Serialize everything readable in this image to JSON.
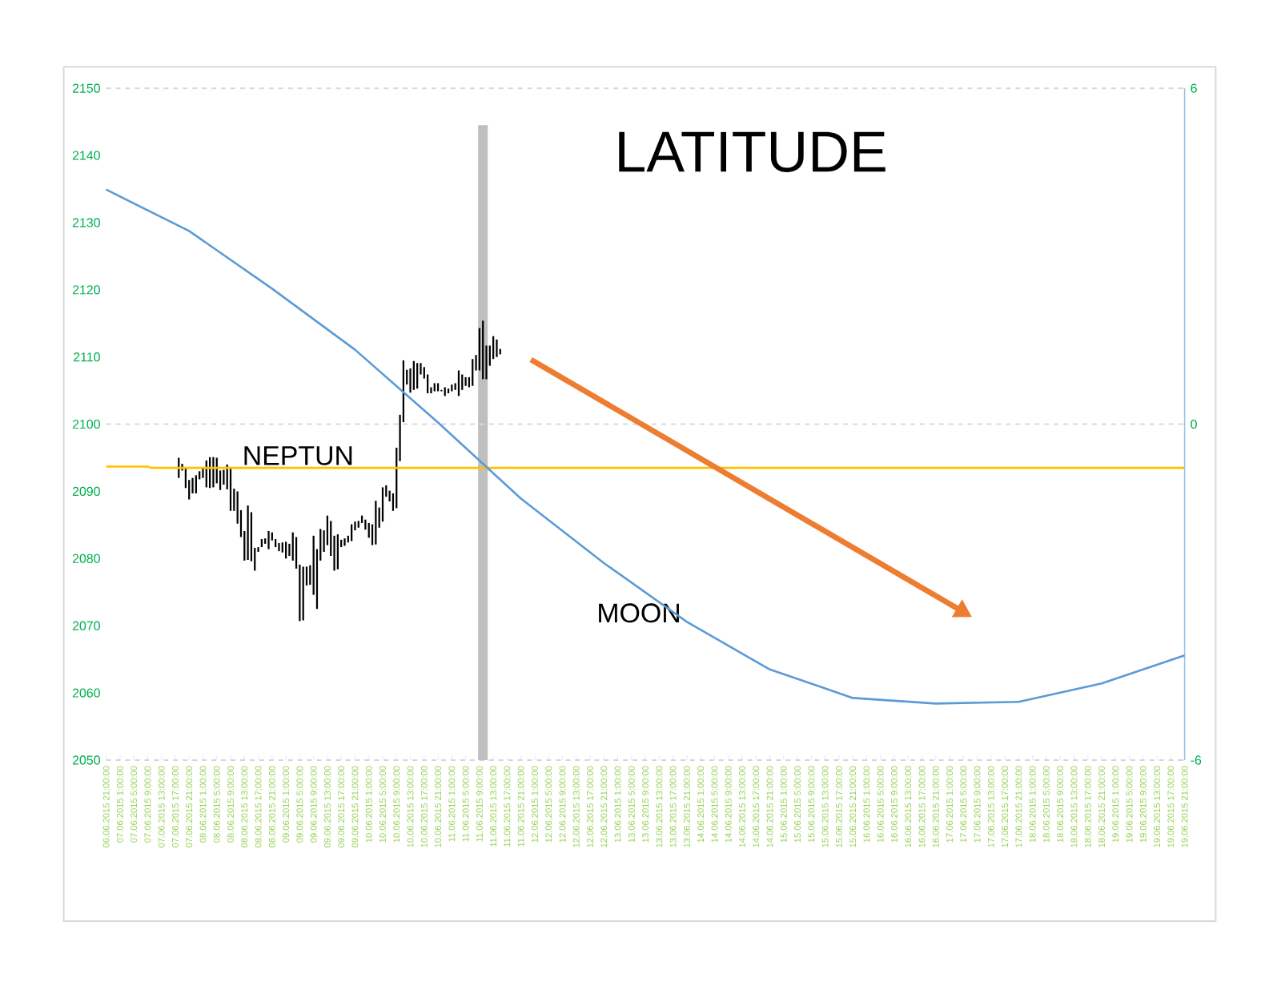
{
  "chart_data": {
    "type": "bar",
    "title": "LATITUDE",
    "xlim": [
      "2015-06-06T21:00",
      "2015-06-19T21:00"
    ],
    "xticks": [
      {
        "value": "2015-06-06T21:00",
        "label": "06.06.2015 21:00:00"
      },
      {
        "value": "2015-06-07T01:00",
        "label": "07.06.2015 1:00:00"
      },
      {
        "value": "2015-06-07T05:00",
        "label": "07.06.2015 5:00:00"
      },
      {
        "value": "2015-06-07T09:00",
        "label": "07.06.2015 9:00:00"
      },
      {
        "value": "2015-06-07T13:00",
        "label": "07.06.2015 13:00:00"
      },
      {
        "value": "2015-06-07T17:00",
        "label": "07.06.2015 17:00:00"
      },
      {
        "value": "2015-06-07T21:00",
        "label": "07.06.2015 21:00:00"
      },
      {
        "value": "2015-06-08T01:00",
        "label": "08.06.2015 1:00:00"
      },
      {
        "value": "2015-06-08T05:00",
        "label": "08.06.2015 5:00:00"
      },
      {
        "value": "2015-06-08T09:00",
        "label": "08.06.2015 9:00:00"
      },
      {
        "value": "2015-06-08T13:00",
        "label": "08.06.2015 13:00:00"
      },
      {
        "value": "2015-06-08T17:00",
        "label": "08.06.2015 17:00:00"
      },
      {
        "value": "2015-06-08T21:00",
        "label": "08.06.2015 21:00:00"
      },
      {
        "value": "2015-06-09T01:00",
        "label": "09.06.2015 1:00:00"
      },
      {
        "value": "2015-06-09T05:00",
        "label": "09.06.2015 5:00:00"
      },
      {
        "value": "2015-06-09T09:00",
        "label": "09.06.2015 9:00:00"
      },
      {
        "value": "2015-06-09T13:00",
        "label": "09.06.2015 13:00:00"
      },
      {
        "value": "2015-06-09T17:00",
        "label": "09.06.2015 17:00:00"
      },
      {
        "value": "2015-06-09T21:00",
        "label": "09.06.2015 21:00:00"
      },
      {
        "value": "2015-06-10T01:00",
        "label": "10.06.2015 1:00:00"
      },
      {
        "value": "2015-06-10T05:00",
        "label": "10.06.2015 5:00:00"
      },
      {
        "value": "2015-06-10T09:00",
        "label": "10.06.2015 9:00:00"
      },
      {
        "value": "2015-06-10T13:00",
        "label": "10.06.2015 13:00:00"
      },
      {
        "value": "2015-06-10T17:00",
        "label": "10.06.2015 17:00:00"
      },
      {
        "value": "2015-06-10T21:00",
        "label": "10.06.2015 21:00:00"
      },
      {
        "value": "2015-06-11T01:00",
        "label": "11.06.2015 1:00:00"
      },
      {
        "value": "2015-06-11T05:00",
        "label": "11.06.2015 5:00:00"
      },
      {
        "value": "2015-06-11T09:00",
        "label": "11.06.2015 9:00:00"
      },
      {
        "value": "2015-06-11T13:00",
        "label": "11.06.2015 13:00:00"
      },
      {
        "value": "2015-06-11T17:00",
        "label": "11.06.2015 17:00:00"
      },
      {
        "value": "2015-06-11T21:00",
        "label": "11.06.2015 21:00:00"
      },
      {
        "value": "2015-06-12T01:00",
        "label": "12.06.2015 1:00:00"
      },
      {
        "value": "2015-06-12T05:00",
        "label": "12.06.2015 5:00:00"
      },
      {
        "value": "2015-06-12T09:00",
        "label": "12.06.2015 9:00:00"
      },
      {
        "value": "2015-06-12T13:00",
        "label": "12.06.2015 13:00:00"
      },
      {
        "value": "2015-06-12T17:00",
        "label": "12.06.2015 17:00:00"
      },
      {
        "value": "2015-06-12T21:00",
        "label": "12.06.2015 21:00:00"
      },
      {
        "value": "2015-06-13T01:00",
        "label": "13.06.2015 1:00:00"
      },
      {
        "value": "2015-06-13T05:00",
        "label": "13.06.2015 5:00:00"
      },
      {
        "value": "2015-06-13T09:00",
        "label": "13.06.2015 9:00:00"
      },
      {
        "value": "2015-06-13T13:00",
        "label": "13.06.2015 13:00:00"
      },
      {
        "value": "2015-06-13T17:00",
        "label": "13.06.2015 17:00:00"
      },
      {
        "value": "2015-06-13T21:00",
        "label": "13.06.2015 21:00:00"
      },
      {
        "value": "2015-06-14T01:00",
        "label": "14.06.2015 1:00:00"
      },
      {
        "value": "2015-06-14T05:00",
        "label": "14.06.2015 5:00:00"
      },
      {
        "value": "2015-06-14T09:00",
        "label": "14.06.2015 9:00:00"
      },
      {
        "value": "2015-06-14T13:00",
        "label": "14.06.2015 13:00:00"
      },
      {
        "value": "2015-06-14T17:00",
        "label": "14.06.2015 17:00:00"
      },
      {
        "value": "2015-06-14T21:00",
        "label": "14.06.2015 21:00:00"
      },
      {
        "value": "2015-06-15T01:00",
        "label": "15.06.2015 1:00:00"
      },
      {
        "value": "2015-06-15T05:00",
        "label": "15.06.2015 5:00:00"
      },
      {
        "value": "2015-06-15T09:00",
        "label": "15.06.2015 9:00:00"
      },
      {
        "value": "2015-06-15T13:00",
        "label": "15.06.2015 13:00:00"
      },
      {
        "value": "2015-06-15T17:00",
        "label": "15.06.2015 17:00:00"
      },
      {
        "value": "2015-06-15T21:00",
        "label": "15.06.2015 21:00:00"
      },
      {
        "value": "2015-06-16T01:00",
        "label": "16.06.2015 1:00:00"
      },
      {
        "value": "2015-06-16T05:00",
        "label": "16.06.2015 5:00:00"
      },
      {
        "value": "2015-06-16T09:00",
        "label": "16.06.2015 9:00:00"
      },
      {
        "value": "2015-06-16T13:00",
        "label": "16.06.2015 13:00:00"
      },
      {
        "value": "2015-06-16T17:00",
        "label": "16.06.2015 17:00:00"
      },
      {
        "value": "2015-06-16T21:00",
        "label": "16.06.2015 21:00:00"
      },
      {
        "value": "2015-06-17T01:00",
        "label": "17.06.2015 1:00:00"
      },
      {
        "value": "2015-06-17T05:00",
        "label": "17.06.2015 5:00:00"
      },
      {
        "value": "2015-06-17T09:00",
        "label": "17.06.2015 9:00:00"
      },
      {
        "value": "2015-06-17T13:00",
        "label": "17.06.2015 13:00:00"
      },
      {
        "value": "2015-06-17T17:00",
        "label": "17.06.2015 17:00:00"
      },
      {
        "value": "2015-06-17T21:00",
        "label": "17.06.2015 21:00:00"
      },
      {
        "value": "2015-06-18T01:00",
        "label": "18.06.2015 1:00:00"
      },
      {
        "value": "2015-06-18T05:00",
        "label": "18.06.2015 5:00:00"
      },
      {
        "value": "2015-06-18T09:00",
        "label": "18.06.2015 9:00:00"
      },
      {
        "value": "2015-06-18T13:00",
        "label": "18.06.2015 13:00:00"
      },
      {
        "value": "2015-06-18T17:00",
        "label": "18.06.2015 17:00:00"
      },
      {
        "value": "2015-06-18T21:00",
        "label": "18.06.2015 21:00:00"
      },
      {
        "value": "2015-06-19T01:00",
        "label": "19.06.2015 1:00:00"
      },
      {
        "value": "2015-06-19T05:00",
        "label": "19.06.2015 5:00:00"
      },
      {
        "value": "2015-06-19T09:00",
        "label": "19.06.2015 9:00:00"
      },
      {
        "value": "2015-06-19T13:00",
        "label": "19.06.2015 13:00:00"
      },
      {
        "value": "2015-06-19T17:00",
        "label": "19.06.2015 17:00:00"
      },
      {
        "value": "2015-06-19T21:00",
        "label": "19.06.2015 21:00:00"
      }
    ],
    "ylim": [
      2050,
      2150
    ],
    "yticks": [
      2050,
      2060,
      2070,
      2080,
      2090,
      2100,
      2110,
      2120,
      2130,
      2140,
      2150
    ],
    "y2lim": [
      -6,
      6
    ],
    "y2ticks": [
      -6,
      0,
      6
    ],
    "series": [
      {
        "color": "#000000",
        "x": [
          "2015-06-07T18:00",
          "2015-06-07T19:00",
          "2015-06-07T20:00",
          "2015-06-07T21:00",
          "2015-06-07T22:00",
          "2015-06-07T23:00",
          "2015-06-08T00:00",
          "2015-06-08T01:00",
          "2015-06-08T02:00",
          "2015-06-08T03:00",
          "2015-06-08T04:00",
          "2015-06-08T05:00",
          "2015-06-08T06:00",
          "2015-06-08T07:00",
          "2015-06-08T08:00",
          "2015-06-08T09:00",
          "2015-06-08T10:00",
          "2015-06-08T11:00",
          "2015-06-08T12:00",
          "2015-06-08T13:00",
          "2015-06-08T14:00",
          "2015-06-08T15:00",
          "2015-06-08T16:00",
          "2015-06-08T17:00",
          "2015-06-08T18:00",
          "2015-06-08T19:00",
          "2015-06-08T20:00",
          "2015-06-08T21:00",
          "2015-06-08T22:00",
          "2015-06-08T23:00",
          "2015-06-09T00:00",
          "2015-06-09T01:00",
          "2015-06-09T02:00",
          "2015-06-09T03:00",
          "2015-06-09T04:00",
          "2015-06-09T05:00",
          "2015-06-09T06:00",
          "2015-06-09T07:00",
          "2015-06-09T08:00",
          "2015-06-09T09:00",
          "2015-06-09T10:00",
          "2015-06-09T11:00",
          "2015-06-09T12:00",
          "2015-06-09T13:00",
          "2015-06-09T14:00",
          "2015-06-09T15:00",
          "2015-06-09T16:00",
          "2015-06-09T17:00",
          "2015-06-09T18:00",
          "2015-06-09T19:00",
          "2015-06-09T20:00",
          "2015-06-09T21:00",
          "2015-06-09T22:00",
          "2015-06-09T23:00",
          "2015-06-10T00:00",
          "2015-06-10T01:00",
          "2015-06-10T02:00",
          "2015-06-10T03:00",
          "2015-06-10T04:00",
          "2015-06-10T05:00",
          "2015-06-10T06:00",
          "2015-06-10T07:00",
          "2015-06-10T08:00",
          "2015-06-10T09:00",
          "2015-06-10T10:00",
          "2015-06-10T11:00",
          "2015-06-10T12:00",
          "2015-06-10T13:00",
          "2015-06-10T14:00",
          "2015-06-10T15:00",
          "2015-06-10T16:00",
          "2015-06-10T17:00",
          "2015-06-10T18:00",
          "2015-06-10T19:00",
          "2015-06-10T20:00",
          "2015-06-10T21:00",
          "2015-06-10T22:00",
          "2015-06-10T23:00",
          "2015-06-11T00:00",
          "2015-06-11T01:00",
          "2015-06-11T02:00",
          "2015-06-11T03:00",
          "2015-06-11T04:00",
          "2015-06-11T05:00",
          "2015-06-11T06:00",
          "2015-06-11T07:00",
          "2015-06-11T08:00",
          "2015-06-11T09:00",
          "2015-06-11T10:00",
          "2015-06-11T11:00",
          "2015-06-11T12:00",
          "2015-06-11T13:00",
          "2015-06-11T14:00",
          "2015-06-11T15:00"
        ],
        "base": [
          2092.0,
          2093.1,
          2090.5,
          2088.8,
          2089.7,
          2089.7,
          2091.8,
          2092.0,
          2090.6,
          2090.5,
          2090.6,
          2091.2,
          2090.2,
          2091.0,
          2090.3,
          2087.1,
          2087.1,
          2085.2,
          2083.2,
          2079.7,
          2079.8,
          2079.6,
          2078.2,
          2081.0,
          2081.7,
          2082.2,
          2081.4,
          2082.7,
          2081.7,
          2081.1,
          2080.9,
          2080.0,
          2080.4,
          2079.7,
          2078.5,
          2070.7,
          2070.8,
          2076.0,
          2076.1,
          2074.6,
          2072.5,
          2079.7,
          2081.0,
          2082.0,
          2080.4,
          2078.2,
          2078.4,
          2081.7,
          2081.9,
          2082.4,
          2082.6,
          2084.2,
          2084.6,
          2085.3,
          2084.3,
          2083.1,
          2082.0,
          2082.1,
          2084.6,
          2085.5,
          2089.2,
          2088.5,
          2087.1,
          2087.5,
          2094.5,
          2100.3,
          2105.9,
          2104.7,
          2105.1,
          2105.3,
          2107.4,
          2106.8,
          2104.6,
          2104.6,
          2104.9,
          2104.9,
          2104.9,
          2104.2,
          2104.6,
          2104.9,
          2105.1,
          2104.2,
          2105.1,
          2105.7,
          2105.5,
          2105.7,
          2108.0,
          2108.0,
          2106.7,
          2106.7,
          2108.7,
          2109.7,
          2110.0,
          2110.4
        ],
        "values": [
          3.0,
          1.0,
          3.0,
          2.9,
          2.3,
          2.7,
          1.2,
          1.4,
          4.0,
          4.6,
          4.5,
          3.8,
          2.9,
          2.2,
          3.7,
          6.3,
          3.3,
          4.8,
          4.0,
          4.4,
          8.1,
          7.3,
          3.4,
          0.7,
          1.2,
          0.8,
          2.7,
          1.2,
          1.2,
          1.2,
          1.5,
          2.5,
          1.8,
          4.2,
          4.7,
          8.4,
          8.0,
          2.8,
          2.9,
          8.8,
          8.9,
          4.7,
          3.2,
          4.4,
          5.2,
          5.2,
          5.2,
          1.1,
          1.1,
          1.0,
          2.5,
          1.3,
          1.0,
          1.1,
          1.5,
          2.2,
          3.1,
          6.5,
          3.0,
          5.1,
          1.7,
          1.6,
          2.6,
          9.0,
          6.9,
          9.2,
          2.2,
          3.6,
          4.3,
          3.8,
          1.7,
          1.7,
          2.8,
          0.9,
          1.2,
          1.2,
          0.2,
          1.3,
          0.7,
          1.0,
          1.0,
          3.8,
          2.3,
          1.3,
          1.5,
          4.0,
          2.3,
          6.3,
          8.7,
          5.0,
          3.0,
          3.4,
          2.6,
          0.8
        ]
      },
      {
        "type": "line",
        "color": "#ffc000",
        "x": [
          "2015-06-06T21:00",
          "2015-06-07T09:00",
          "2015-06-07T10:00",
          "2015-06-19T21:00"
        ],
        "values": [
          2093.7,
          2093.7,
          2093.5,
          2093.5
        ]
      },
      {
        "type": "line",
        "axis": "y2",
        "color": "#5b9bd5",
        "x": [
          "2015-06-06T21:00",
          "2015-06-07T21:00",
          "2015-06-08T21:00",
          "2015-06-09T21:00",
          "2015-06-10T21:00",
          "2015-06-11T21:00",
          "2015-06-12T21:00",
          "2015-06-13T21:00",
          "2015-06-14T21:00",
          "2015-06-15T21:00",
          "2015-06-16T21:00",
          "2015-06-17T21:00",
          "2015-06-18T21:00",
          "2015-06-19T21:00"
        ],
        "values": [
          4.19,
          3.45,
          2.42,
          1.33,
          0.03,
          -1.33,
          -2.48,
          -3.53,
          -4.38,
          -4.89,
          -4.99,
          -4.96,
          -4.63,
          -4.13
        ]
      }
    ],
    "ref_lines": [
      {
        "axis": "x",
        "value": "2015-06-11T10:00",
        "color": "#bfbfbf"
      },
      {
        "axis": "y2",
        "value": 0,
        "color": "#d9d9d9",
        "line_style": "dashed"
      },
      {
        "axis": "y2",
        "value": 6,
        "color": "#d9d9d9",
        "line_style": "dashed"
      }
    ],
    "annotations": [
      "NEPTUN",
      "MOON"
    ]
  }
}
